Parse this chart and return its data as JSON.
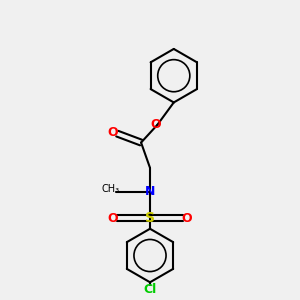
{
  "background_color": "#f0f0f0",
  "atom_colors": {
    "C": "#000000",
    "H": "#000000",
    "O": "#ff0000",
    "N": "#0000ff",
    "S": "#cccc00",
    "Cl": "#00cc00"
  },
  "bond_color": "#000000",
  "figsize": [
    3.0,
    3.0
  ],
  "dpi": 100
}
